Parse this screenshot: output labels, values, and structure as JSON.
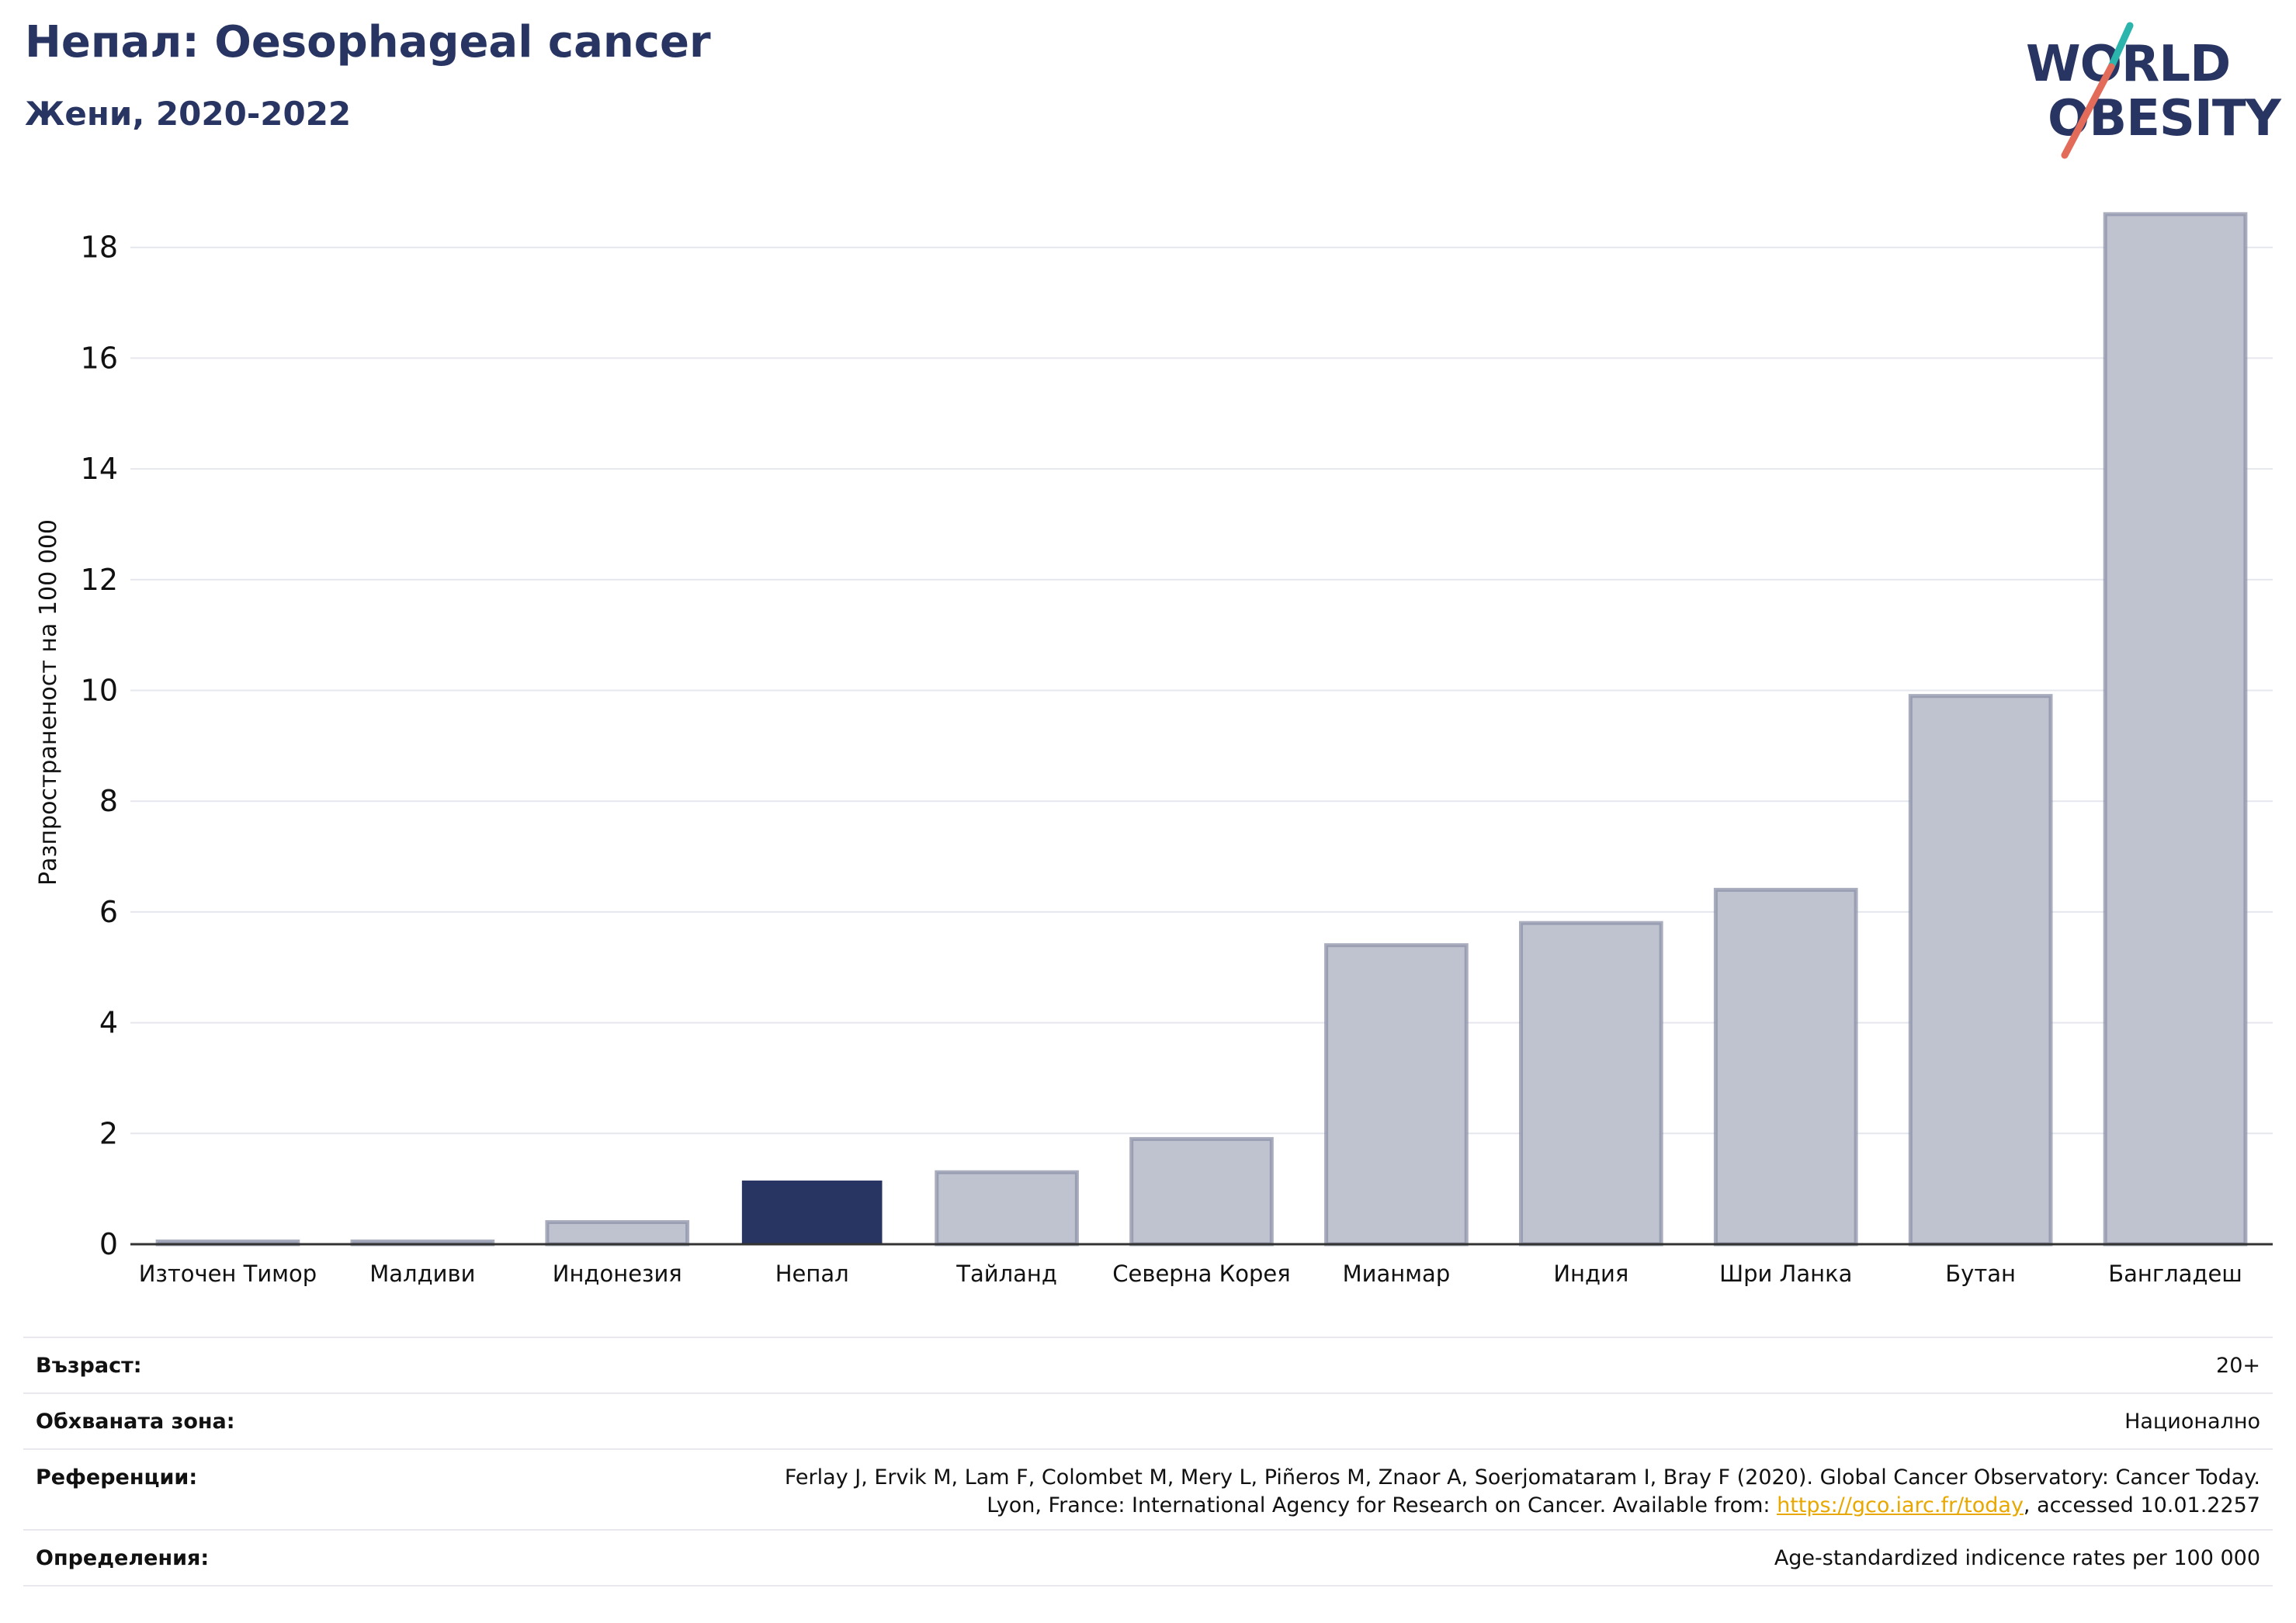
{
  "header": {
    "title": "Непал: Oesophageal cancer",
    "subtitle": "Жени, 2020-2022"
  },
  "logo": {
    "line1": "WORLD",
    "line2": "OBESITY",
    "colors": {
      "text": "#283562",
      "slash_top": "#2bb5ad",
      "slash_bottom": "#e36b5a"
    }
  },
  "chart_data": {
    "type": "bar",
    "ylabel": "Разпространеност  на 100 000",
    "xlabel": "",
    "ylim": [
      0,
      19
    ],
    "yticks": [
      0,
      2,
      4,
      6,
      8,
      10,
      12,
      14,
      16,
      18
    ],
    "grid": true,
    "categories": [
      "Източен Тимор",
      "Малдиви",
      "Индонезия",
      "Непал",
      "Тайланд",
      "Северна Корея",
      "Мианмар",
      "Индия",
      "Шри Ланка",
      "Бутан",
      "Бангладеш"
    ],
    "values": [
      0.05,
      0.05,
      0.4,
      1.15,
      1.3,
      1.9,
      5.4,
      5.8,
      6.4,
      9.9,
      18.6
    ],
    "highlight": "Непал",
    "colors": {
      "highlight": "#283562",
      "other": "#bfc2cf",
      "other_edge": "#8c91a8"
    }
  },
  "meta": {
    "age_label": "Възраст:",
    "age_value": "20+",
    "area_label": "Обхваната зона:",
    "area_value": "Национално",
    "refs_label": "Референции:",
    "refs_line1": "Ferlay J, Ervik M, Lam F, Colombet M, Mery L, Piñeros M, Znaor A, Soerjomataram I, Bray F (2020). Global Cancer Observatory: Cancer Today.",
    "refs_line2_prefix": "Lyon, France: International Agency for Research on Cancer. Available from: ",
    "refs_link": "https://gco.iarc.fr/today",
    "refs_line2_suffix": ", accessed 10.01.2257",
    "defs_label": "Определения:",
    "defs_value": "Age-standardized indicence rates per 100 000"
  }
}
